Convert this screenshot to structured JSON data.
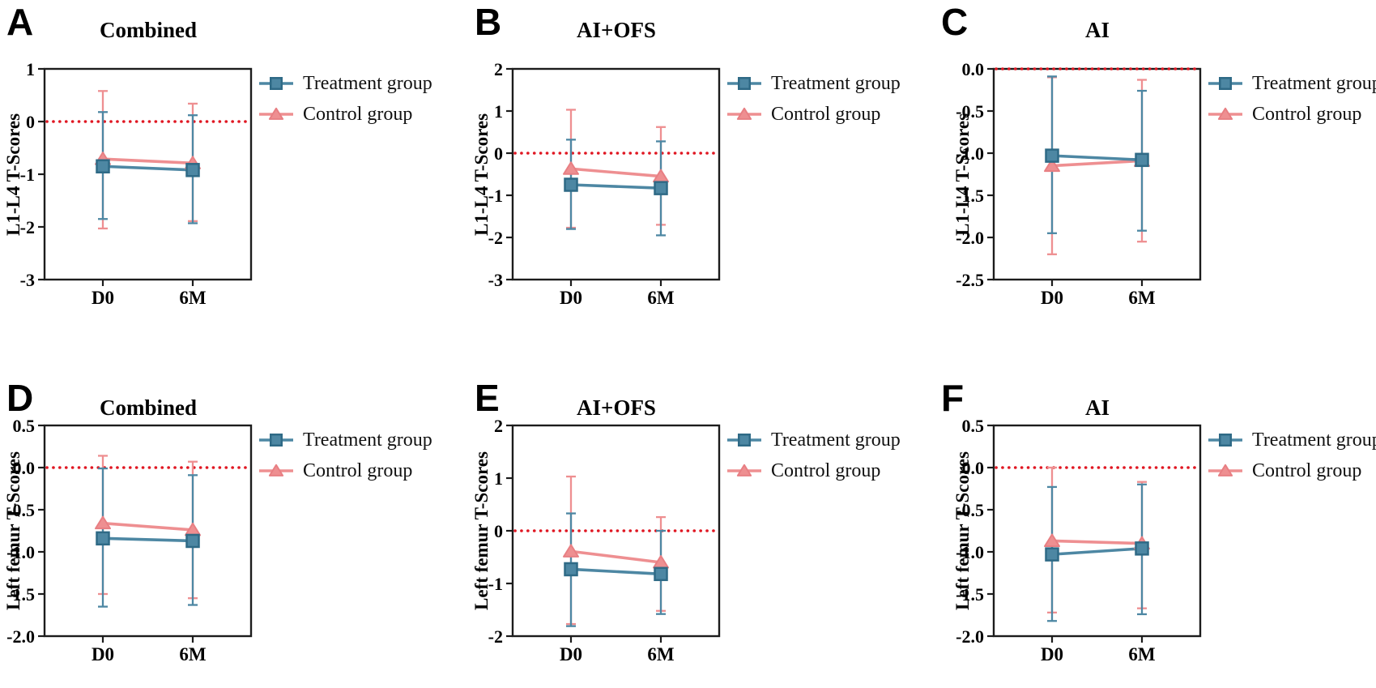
{
  "figure": {
    "background": "#ffffff",
    "colors": {
      "treatment_fill": "#4d87a3",
      "treatment_stroke": "#2f6a86",
      "control_fill": "#ee8f91",
      "control_stroke": "#e87f83",
      "zero_line": "#e01722",
      "axis": "#1c1c1c"
    },
    "x_axis_timepoints": [
      "D0",
      "6M"
    ],
    "legend_labels": [
      "Treatment group",
      "Control group"
    ]
  },
  "chart_data": [
    {
      "type": "line",
      "letter": "A",
      "title": "Combined",
      "ylabel": "L1-L4 T-Scores",
      "x_categories": [
        "D0",
        "6M"
      ],
      "ylim": [
        -3,
        1
      ],
      "zero_line_y": 0,
      "grid": false,
      "legend_position": "right-top",
      "yticks": [
        {
          "v": 1,
          "label": "1"
        },
        {
          "v": 0,
          "label": "0"
        },
        {
          "v": -1,
          "label": "-1"
        },
        {
          "v": -2,
          "label": "-2"
        },
        {
          "v": -3,
          "label": "-3"
        }
      ],
      "series": [
        {
          "name": "Treatment group",
          "marker": "square",
          "color": "#4d87a3",
          "stroke": "#2f6a86",
          "values": [
            -0.85,
            -0.92
          ],
          "err_high": [
            0.18,
            0.12
          ],
          "err_low": [
            -1.85,
            -1.93
          ]
        },
        {
          "name": "Control group",
          "marker": "triangle",
          "color": "#ee8f91",
          "stroke": "#e87f83",
          "values": [
            -0.71,
            -0.79
          ],
          "err_high": [
            0.58,
            0.34
          ],
          "err_low": [
            -2.03,
            -1.89
          ]
        }
      ]
    },
    {
      "type": "line",
      "letter": "B",
      "title": "AI+OFS",
      "ylabel": "L1-L4 T-Scores",
      "x_categories": [
        "D0",
        "6M"
      ],
      "ylim": [
        -3,
        2
      ],
      "zero_line_y": 0,
      "grid": false,
      "legend_position": "right-top",
      "yticks": [
        {
          "v": 2,
          "label": "2"
        },
        {
          "v": 1,
          "label": "1"
        },
        {
          "v": 0,
          "label": "0"
        },
        {
          "v": -1,
          "label": "-1"
        },
        {
          "v": -2,
          "label": "-2"
        },
        {
          "v": -3,
          "label": "-3"
        }
      ],
      "series": [
        {
          "name": "Treatment group",
          "marker": "square",
          "color": "#4d87a3",
          "stroke": "#2f6a86",
          "values": [
            -0.75,
            -0.83
          ],
          "err_high": [
            0.32,
            0.28
          ],
          "err_low": [
            -1.8,
            -1.95
          ]
        },
        {
          "name": "Control group",
          "marker": "triangle",
          "color": "#ee8f91",
          "stroke": "#e87f83",
          "values": [
            -0.37,
            -0.55
          ],
          "err_high": [
            1.03,
            0.62
          ],
          "err_low": [
            -1.77,
            -1.7
          ]
        }
      ]
    },
    {
      "type": "line",
      "letter": "C",
      "title": "AI",
      "ylabel": "L1-L4 T-Scores",
      "x_categories": [
        "D0",
        "6M"
      ],
      "ylim": [
        -2.5,
        0
      ],
      "zero_line_y": 0,
      "grid": false,
      "legend_position": "right-top",
      "yticks": [
        {
          "v": 0,
          "label": "0.0"
        },
        {
          "v": -0.5,
          "label": "-0.5"
        },
        {
          "v": -1,
          "label": "-1.0"
        },
        {
          "v": -1.5,
          "label": "-1.5"
        },
        {
          "v": -2,
          "label": "-2.0"
        },
        {
          "v": -2.5,
          "label": "-2.5"
        }
      ],
      "series": [
        {
          "name": "Treatment group",
          "marker": "square",
          "color": "#4d87a3",
          "stroke": "#2f6a86",
          "values": [
            -1.03,
            -1.08
          ],
          "err_high": [
            -0.09,
            -0.26
          ],
          "err_low": [
            -1.95,
            -1.92
          ]
        },
        {
          "name": "Control group",
          "marker": "triangle",
          "color": "#ee8f91",
          "stroke": "#e87f83",
          "values": [
            -1.15,
            -1.09
          ],
          "err_high": [
            -0.1,
            -0.13
          ],
          "err_low": [
            -2.2,
            -2.05
          ]
        }
      ]
    },
    {
      "type": "line",
      "letter": "D",
      "title": "Combined",
      "ylabel": "Left femur T-Scores",
      "x_categories": [
        "D0",
        "6M"
      ],
      "ylim": [
        -2,
        0.5
      ],
      "zero_line_y": 0,
      "grid": false,
      "legend_position": "right-top",
      "yticks": [
        {
          "v": 0.5,
          "label": "0.5"
        },
        {
          "v": 0,
          "label": "0.0"
        },
        {
          "v": -0.5,
          "label": "-0.5"
        },
        {
          "v": -1,
          "label": "-1.0"
        },
        {
          "v": -1.5,
          "label": "-1.5"
        },
        {
          "v": -2,
          "label": "-2.0"
        }
      ],
      "series": [
        {
          "name": "Treatment group",
          "marker": "square",
          "color": "#4d87a3",
          "stroke": "#2f6a86",
          "values": [
            -0.84,
            -0.87
          ],
          "err_high": [
            -0.01,
            -0.09
          ],
          "err_low": [
            -1.65,
            -1.63
          ]
        },
        {
          "name": "Control group",
          "marker": "triangle",
          "color": "#ee8f91",
          "stroke": "#e87f83",
          "values": [
            -0.66,
            -0.74
          ],
          "err_high": [
            0.14,
            0.07
          ],
          "err_low": [
            -1.5,
            -1.55
          ]
        }
      ]
    },
    {
      "type": "line",
      "letter": "E",
      "title": "AI+OFS",
      "ylabel": "Left femur T-Scores",
      "x_categories": [
        "D0",
        "6M"
      ],
      "ylim": [
        -2,
        2
      ],
      "zero_line_y": 0,
      "grid": false,
      "legend_position": "right-top",
      "yticks": [
        {
          "v": 2,
          "label": "2"
        },
        {
          "v": 1,
          "label": "1"
        },
        {
          "v": 0,
          "label": "0"
        },
        {
          "v": -1,
          "label": "-1"
        },
        {
          "v": -2,
          "label": "-2"
        }
      ],
      "series": [
        {
          "name": "Treatment group",
          "marker": "square",
          "color": "#4d87a3",
          "stroke": "#2f6a86",
          "values": [
            -0.73,
            -0.82
          ],
          "err_high": [
            0.33,
            0.0
          ],
          "err_low": [
            -1.81,
            -1.58
          ]
        },
        {
          "name": "Control group",
          "marker": "triangle",
          "color": "#ee8f91",
          "stroke": "#e87f83",
          "values": [
            -0.39,
            -0.6
          ],
          "err_high": [
            1.03,
            0.26
          ],
          "err_low": [
            -1.77,
            -1.52
          ]
        }
      ]
    },
    {
      "type": "line",
      "letter": "F",
      "title": "AI",
      "ylabel": "Left femur T-Scores",
      "x_categories": [
        "D0",
        "6M"
      ],
      "ylim": [
        -2,
        0.5
      ],
      "zero_line_y": 0,
      "grid": false,
      "legend_position": "right-top",
      "yticks": [
        {
          "v": 0.5,
          "label": "0.5"
        },
        {
          "v": 0,
          "label": "0.0"
        },
        {
          "v": -0.5,
          "label": "-0.5"
        },
        {
          "v": -1,
          "label": "-1.0"
        },
        {
          "v": -1.5,
          "label": "-1.5"
        },
        {
          "v": -2,
          "label": "-2.0"
        }
      ],
      "series": [
        {
          "name": "Treatment group",
          "marker": "square",
          "color": "#4d87a3",
          "stroke": "#2f6a86",
          "values": [
            -1.03,
            -0.96
          ],
          "err_high": [
            -0.23,
            -0.2
          ],
          "err_low": [
            -1.82,
            -1.74
          ]
        },
        {
          "name": "Control group",
          "marker": "triangle",
          "color": "#ee8f91",
          "stroke": "#e87f83",
          "values": [
            -0.87,
            -0.9
          ],
          "err_high": [
            0.0,
            -0.17
          ],
          "err_low": [
            -1.72,
            -1.67
          ]
        }
      ]
    }
  ]
}
